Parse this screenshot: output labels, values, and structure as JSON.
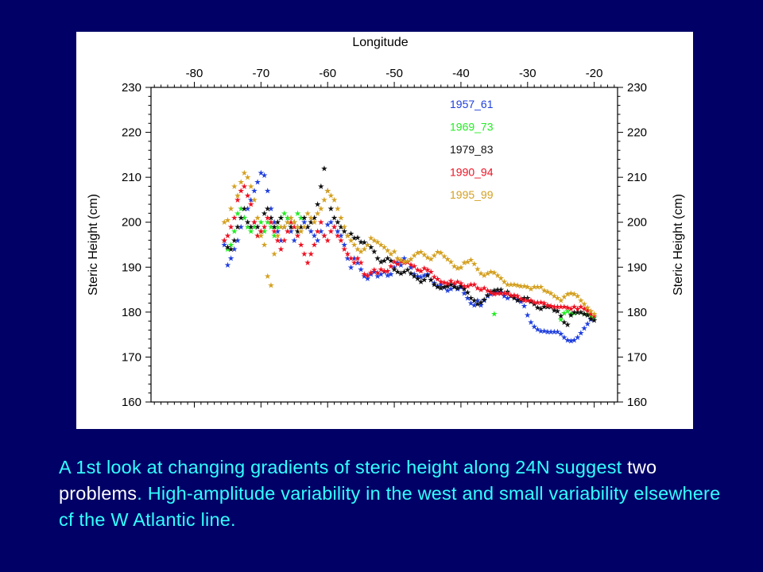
{
  "caption": {
    "part1": "A 1st look at changing gradients of steric height along 24N suggest",
    "part2": " two problems",
    "part3": ". High-amplitude variability in the west and small variability elsewhere cf the W Atlantic line."
  },
  "chart_data": {
    "type": "scatter",
    "title": "",
    "xlabel": "Longitude",
    "ylabel": "Steric Height (cm)",
    "ylabel_right": "Steric Height (cm)",
    "xlim": [
      -86.5,
      -16.5
    ],
    "ylim": [
      160,
      230
    ],
    "xticks": [
      -80,
      -70,
      -60,
      -50,
      -40,
      -30,
      -20
    ],
    "xtick_labels": [
      "-80",
      "-70",
      "-60",
      "-50",
      "-40",
      "-30",
      "-20"
    ],
    "yticks": [
      160,
      170,
      180,
      190,
      200,
      210,
      220,
      230
    ],
    "ytick_labels": [
      "160",
      "170",
      "180",
      "190",
      "200",
      "210",
      "220",
      "230"
    ],
    "x_axis_position": "top",
    "legend_position": "top-right",
    "marker": "★",
    "grid": false,
    "series": [
      {
        "name": "1957_61",
        "color": "#1f3fdd",
        "x": [
          -75.5,
          -75,
          -74.5,
          -74,
          -73.5,
          -73,
          -72.5,
          -72,
          -71.5,
          -71,
          -70.5,
          -70,
          -69.5,
          -69,
          -68.5,
          -68,
          -67.5,
          -67,
          -66.5,
          -66,
          -65.5,
          -65,
          -64.5,
          -64,
          -63.5,
          -63,
          -62.5,
          -62,
          -61.5,
          -61,
          -60.5,
          -60,
          -59.5,
          -59,
          -58.5,
          -58,
          -57.5,
          -57,
          -56.5,
          -56,
          -55.5,
          -55,
          -54.5,
          -54,
          -53.5,
          -53,
          -52.5,
          -52,
          -51.5,
          -51,
          -50.5,
          -50,
          -49.5,
          -49,
          -48.5,
          -48,
          -47.5,
          -47,
          -46.5,
          -46,
          -45.5,
          -45,
          -44.5,
          -44,
          -43.5,
          -43,
          -42.5,
          -42,
          -41.5,
          -41,
          -40.5,
          -40,
          -39.5,
          -39,
          -38.5,
          -38,
          -37.5,
          -37,
          -36.5,
          -36,
          -35.5,
          -35,
          -34.5,
          -34,
          -33.5,
          -33,
          -32.5,
          -32,
          -31.5,
          -31,
          -30.5,
          -30,
          -29.5,
          -29,
          -28.5,
          -28,
          -27.5,
          -27,
          -26.5,
          -26,
          -25.5,
          -25,
          -24.5,
          -24,
          -23.5,
          -23,
          -22.5,
          -22,
          -21.5,
          -21,
          -20.5,
          -20
        ],
        "y": [
          195,
          190.5,
          192,
          194,
          196,
          199,
          201,
          203,
          205,
          207,
          209,
          211,
          210.5,
          207,
          203,
          200,
          198,
          196,
          199,
          201,
          198,
          196,
          199,
          201,
          200,
          199,
          198,
          197,
          196,
          198,
          197,
          199.5,
          200,
          199,
          198,
          197,
          195,
          192,
          190,
          192,
          191,
          189.5,
          188,
          187.5,
          188.5,
          189,
          188,
          188.5,
          189,
          188.2,
          188.5,
          190,
          191,
          190.5,
          192,
          191.2,
          190,
          188.5,
          188,
          187.8,
          188.2,
          188.5,
          187.2,
          186.5,
          185.8,
          186.2,
          185.5,
          184.8,
          185.2,
          186,
          185.2,
          185.5,
          184.2,
          183.2,
          182,
          181.6,
          182.6,
          181.6,
          182.6,
          183.6,
          184,
          184.4,
          184.6,
          184.4,
          183.6,
          183.2,
          183.6,
          183.6,
          182.8,
          182.4,
          181.4,
          179.4,
          177.8,
          176.8,
          176.2,
          175.8,
          175.8,
          175.6,
          175.6,
          175.6,
          175.6,
          175.2,
          174.4,
          173.8,
          173.6,
          173.8,
          174.4,
          175.4,
          176.4,
          177.4,
          178.4,
          178.8
        ]
      },
      {
        "name": "1969_73",
        "color": "#22ee22",
        "x": [
          -75,
          -74.5,
          -74,
          -73.5,
          -73,
          -72.5,
          -72,
          -71.5,
          -71,
          -70.5,
          -70,
          -69.5,
          -69,
          -68.5,
          -68,
          -67.5,
          -67,
          -66.5,
          -66,
          -65.5,
          -65,
          -64.5,
          -64,
          -35,
          -25,
          -24.5,
          -24,
          -23.5,
          -23,
          -22.5,
          -22,
          -21.5,
          -21,
          -20.5,
          -20
        ],
        "y": [
          194,
          195,
          198,
          202,
          203,
          201,
          199,
          198,
          199,
          197,
          200,
          198,
          200,
          199,
          197,
          199,
          201,
          202,
          201,
          199,
          200,
          202,
          201,
          179.6,
          178.4,
          179.8,
          180.2,
          179.6,
          179.8,
          180,
          180,
          179.6,
          179.6,
          179.2,
          178.8
        ]
      },
      {
        "name": "1979_83",
        "color": "#111111",
        "x": [
          -75.5,
          -75,
          -74.5,
          -74,
          -73.5,
          -73,
          -72.5,
          -72,
          -71.5,
          -71,
          -70.5,
          -70,
          -69.5,
          -69,
          -68.5,
          -68,
          -67.5,
          -67,
          -66.5,
          -66,
          -65.5,
          -65,
          -64.5,
          -64,
          -63.5,
          -63,
          -62.5,
          -62,
          -61.5,
          -61,
          -60.5,
          -60,
          -59.5,
          -59,
          -58.5,
          -58,
          -57.5,
          -57,
          -56.5,
          -56,
          -55.5,
          -55,
          -54.5,
          -54,
          -53.5,
          -53,
          -52.5,
          -52,
          -51.5,
          -51,
          -50.5,
          -50,
          -49.5,
          -49,
          -48.5,
          -48,
          -47.5,
          -47,
          -46.5,
          -46,
          -45.5,
          -45,
          -44.5,
          -44,
          -43.5,
          -43,
          -42.5,
          -42,
          -41.5,
          -41,
          -40.5,
          -40,
          -39.5,
          -39,
          -38.5,
          -38,
          -37.5,
          -37,
          -36.5,
          -36,
          -35.5,
          -35,
          -34.5,
          -34,
          -33.5,
          -33,
          -32.5,
          -32,
          -31.5,
          -31,
          -30.5,
          -30,
          -29.5,
          -29,
          -28.5,
          -28,
          -27.5,
          -27,
          -26.5,
          -26,
          -25.5,
          -25,
          -24.5,
          -24,
          -23.5,
          -23,
          -22.5,
          -22,
          -21.5,
          -21,
          -20.5,
          -20
        ],
        "y": [
          196,
          194.5,
          194,
          196,
          199,
          201,
          203,
          200,
          199,
          200,
          199,
          198,
          202,
          203,
          201,
          199,
          200,
          201,
          199,
          200,
          199,
          200,
          198,
          199,
          201,
          199,
          200,
          201,
          204,
          208,
          212,
          207,
          203,
          201,
          200,
          199,
          198,
          197,
          197.5,
          196.5,
          196.6,
          195.6,
          195.5,
          195,
          194.5,
          193.5,
          192,
          191.2,
          191.5,
          192,
          191.5,
          189.5,
          189,
          188.6,
          189,
          189.4,
          188.6,
          188,
          187.5,
          186.8,
          187.2,
          188.2,
          187.2,
          186.2,
          185.6,
          185.4,
          185.6,
          185.8,
          186.2,
          185.6,
          185.4,
          185.8,
          185.2,
          184.4,
          183.2,
          182.6,
          181.8,
          182.2,
          182.8,
          183.8,
          184.6,
          184.8,
          185,
          185,
          184.2,
          184.6,
          183.6,
          183.2,
          182.6,
          182.8,
          183.2,
          183.2,
          182.4,
          181.8,
          181,
          180.8,
          181.2,
          181.2,
          181.2,
          180.4,
          180.2,
          179.2,
          177.8,
          177.2,
          179.4,
          180,
          180,
          180,
          179.6,
          179.4,
          178.6,
          178.2
        ]
      },
      {
        "name": "1990_94",
        "color": "#ee1122",
        "x": [
          -75.5,
          -75,
          -74.5,
          -74,
          -73.5,
          -73,
          -72.5,
          -72,
          -71.5,
          -71,
          -70.5,
          -70,
          -69.5,
          -69,
          -68.5,
          -68,
          -67.5,
          -67,
          -66.5,
          -66,
          -65.5,
          -65,
          -64.5,
          -64,
          -63.5,
          -63,
          -62.5,
          -62,
          -61.5,
          -61,
          -60.5,
          -60,
          -59.5,
          -59,
          -58.5,
          -58,
          -57.5,
          -57,
          -56.5,
          -56,
          -55.5,
          -55,
          -54.5,
          -54,
          -53.5,
          -53,
          -52.5,
          -52,
          -51.5,
          -51,
          -50.5,
          -50,
          -49.5,
          -49,
          -48.5,
          -48,
          -47.5,
          -47,
          -46.5,
          -46,
          -45.5,
          -45,
          -44.5,
          -44,
          -43.5,
          -43,
          -42.5,
          -42,
          -41.5,
          -41,
          -40.5,
          -40,
          -39.5,
          -39,
          -38.5,
          -38,
          -37.5,
          -37,
          -36.5,
          -36,
          -35.5,
          -35,
          -34.5,
          -34,
          -33.5,
          -33,
          -32.5,
          -32,
          -31.5,
          -31,
          -30.5,
          -30,
          -29.5,
          -29,
          -28.5,
          -28,
          -27.5,
          -27,
          -26.5,
          -26,
          -25.5,
          -25,
          -24.5,
          -24,
          -23.5,
          -23,
          -22.5,
          -22,
          -21.5,
          -21,
          -20.5,
          -20
        ],
        "y": [
          196,
          197,
          199,
          201,
          205,
          207,
          208,
          206,
          204,
          200,
          197,
          198,
          199,
          201,
          200,
          198,
          196,
          194,
          196,
          198,
          200,
          199,
          197,
          195,
          193,
          191,
          193,
          195,
          198,
          200,
          197,
          196,
          198,
          199,
          197,
          196,
          194,
          193,
          192,
          191,
          192,
          191,
          188.5,
          188.2,
          188.8,
          189.4,
          188.8,
          189.5,
          189.2,
          189.2,
          190.2,
          191.2,
          190.8,
          191.4,
          191,
          191.2,
          190.6,
          190.2,
          189.4,
          189.2,
          189.8,
          189.4,
          189,
          187.8,
          187.4,
          186.8,
          186.6,
          186.4,
          187,
          186.4,
          186.8,
          186.4,
          185.8,
          185.8,
          186.2,
          186.2,
          185.4,
          185,
          185.4,
          184.8,
          184.4,
          184,
          184.2,
          184.2,
          184.2,
          184.2,
          183.8,
          183.8,
          183.6,
          183,
          182.6,
          182.6,
          182.6,
          182.2,
          182.2,
          182.2,
          182,
          181.6,
          181.4,
          181.2,
          181.2,
          181.2,
          181.2,
          181,
          180.8,
          181.2,
          180.8,
          181.2,
          180.8,
          180.4,
          179.6,
          179.2
        ]
      },
      {
        "name": "1995_99",
        "color": "#d4a020",
        "x": [
          -75.5,
          -75,
          -74.5,
          -74,
          -73.5,
          -73,
          -72.5,
          -72,
          -71.5,
          -71,
          -70.5,
          -70,
          -69.5,
          -69,
          -68.5,
          -68,
          -67.5,
          -67,
          -66.5,
          -66,
          -65.5,
          -65,
          -64.5,
          -64,
          -63.5,
          -63,
          -62.5,
          -62,
          -61.5,
          -61,
          -60.5,
          -60,
          -59.5,
          -59,
          -58.5,
          -58,
          -57.5,
          -57,
          -56.5,
          -56,
          -55.5,
          -55,
          -54.5,
          -54,
          -53.5,
          -53,
          -52.5,
          -52,
          -51.5,
          -51,
          -50.5,
          -50,
          -49.5,
          -49,
          -48.5,
          -48,
          -47.5,
          -47,
          -46.5,
          -46,
          -45.5,
          -45,
          -44.5,
          -44,
          -43.5,
          -43,
          -42.5,
          -42,
          -41.5,
          -41,
          -40.5,
          -40,
          -39.5,
          -39,
          -38.5,
          -38,
          -37.5,
          -37,
          -36.5,
          -36,
          -35.5,
          -35,
          -34.5,
          -34,
          -33.5,
          -33,
          -32.5,
          -32,
          -31.5,
          -31,
          -30.5,
          -30,
          -29.5,
          -29,
          -28.5,
          -28,
          -27.5,
          -27,
          -26.5,
          -26,
          -25.5,
          -25,
          -24.5,
          -24,
          -23.5,
          -23,
          -22.5,
          -22,
          -21.5,
          -21,
          -20.5,
          -20
        ],
        "y": [
          200,
          200.5,
          203,
          208,
          206,
          209,
          211,
          210,
          208,
          205,
          201,
          197,
          195,
          188,
          186,
          193,
          197,
          199,
          199,
          200,
          201,
          200,
          199,
          198,
          199,
          202,
          201,
          200,
          202,
          203,
          205,
          207,
          206,
          205,
          203,
          201,
          199,
          197,
          196,
          195,
          194,
          193.5,
          194,
          195,
          196.5,
          196,
          195.6,
          195,
          194.5,
          193.8,
          193,
          193.5,
          192,
          191.6,
          191.2,
          191.4,
          191.8,
          192.6,
          193.2,
          193.4,
          192.8,
          192.2,
          191.8,
          192.6,
          193.4,
          193.2,
          192.4,
          191.8,
          191.2,
          190.2,
          189.8,
          190,
          191,
          191.2,
          191.6,
          190.8,
          189.6,
          188.6,
          188.2,
          188.6,
          189,
          188.8,
          188.2,
          187.6,
          186.8,
          186.2,
          186.2,
          186.2,
          186,
          185.8,
          185.8,
          185.6,
          185.2,
          185.6,
          185.6,
          185.6,
          184.8,
          184.6,
          184.2,
          183.6,
          183.2,
          182.6,
          183.4,
          184,
          184.2,
          184,
          183.6,
          182.6,
          181.8,
          181,
          180.2,
          179.6
        ]
      }
    ]
  }
}
